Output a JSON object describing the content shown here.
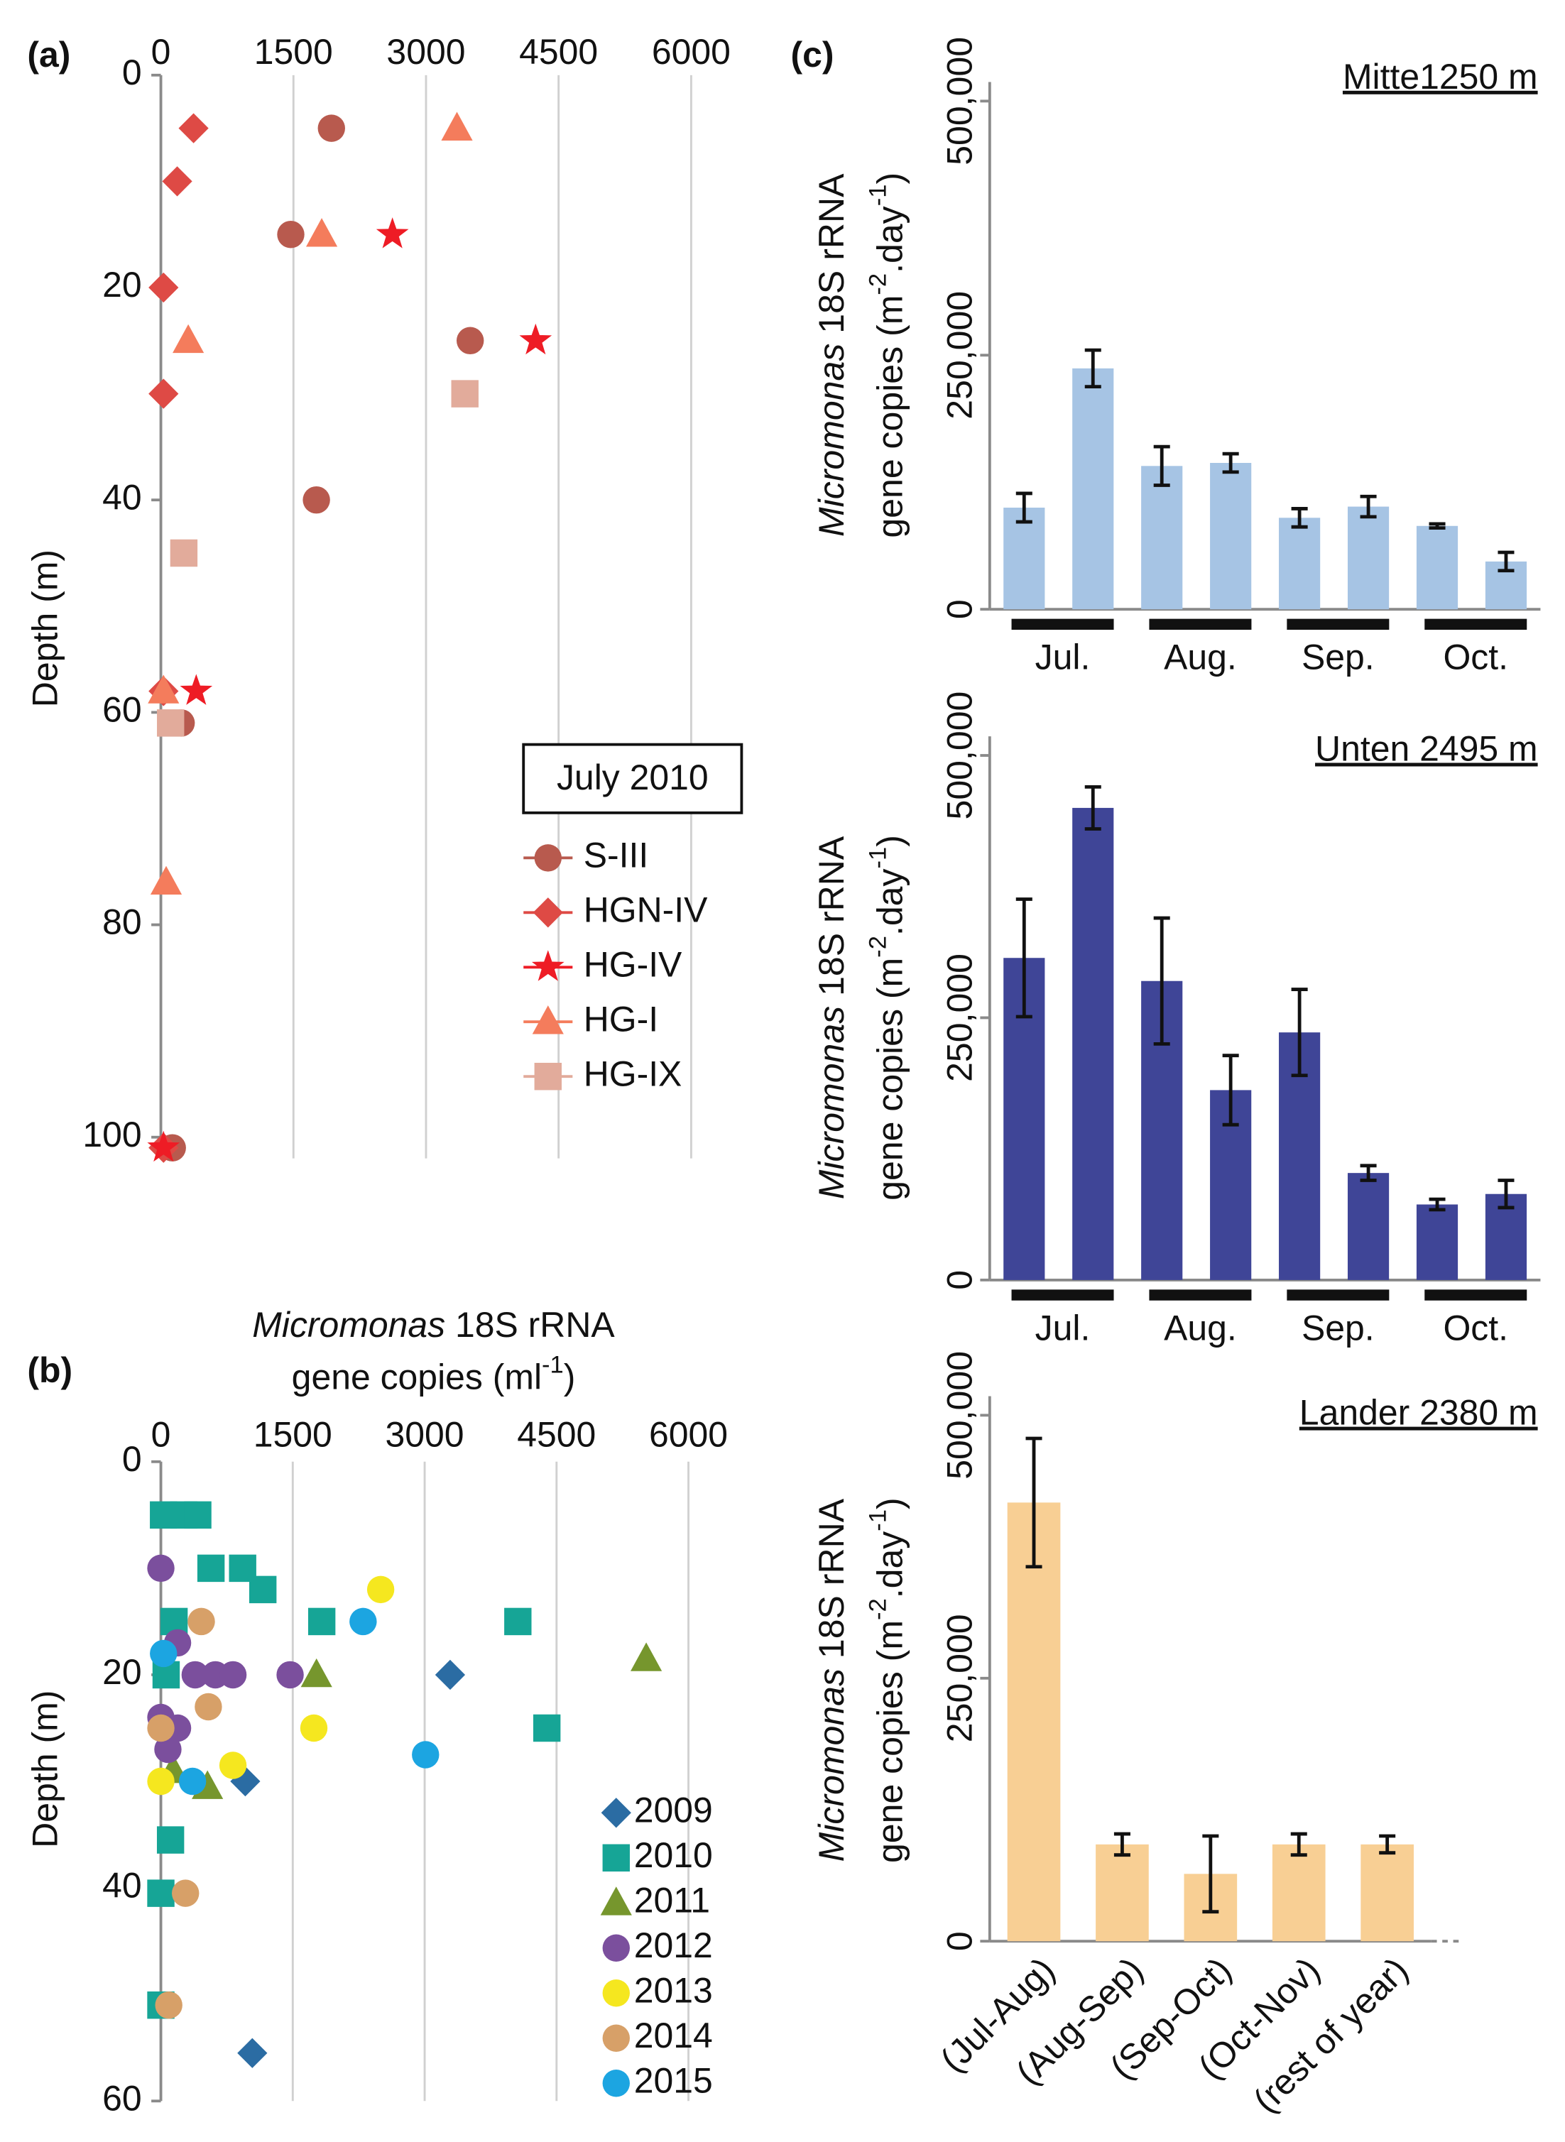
{
  "chart_data": [
    {
      "type": "scatter",
      "panel_label": "(a)",
      "ylabel": "Depth (m)",
      "xlim": [
        0,
        6000
      ],
      "xticks": [
        0,
        1500,
        3000,
        4500,
        6000
      ],
      "ylim": [
        0,
        102
      ],
      "yticks": [
        0,
        20,
        40,
        60,
        80,
        100
      ],
      "grid": true,
      "y_inverted": true,
      "legend_title": "July 2010",
      "series": [
        {
          "name": "S-III",
          "color": "#b85a4e",
          "marker": "circle",
          "x": [
            1930,
            1470,
            3500,
            1760,
            230,
            130
          ],
          "values": [
            5,
            15,
            25,
            40,
            61,
            101
          ]
        },
        {
          "name": "HGN-IV",
          "color": "#de4a45",
          "marker": "diamond",
          "x": [
            370,
            185,
            30,
            30,
            30,
            30
          ],
          "values": [
            5,
            10,
            20,
            30,
            58,
            101
          ]
        },
        {
          "name": "HG-IV",
          "color": "#ee1c25",
          "marker": "star",
          "x": [
            2620,
            4240,
            400,
            30
          ],
          "values": [
            15,
            25,
            58,
            101
          ]
        },
        {
          "name": "HG-I",
          "color": "#f47c5c",
          "marker": "triangle",
          "x": [
            3350,
            1820,
            310,
            30,
            60
          ],
          "values": [
            5,
            15,
            25,
            58,
            76
          ]
        },
        {
          "name": "HG-IX",
          "color": "#e2ab9b",
          "marker": "square",
          "x": [
            3440,
            260,
            110
          ],
          "values": [
            30,
            45,
            61
          ]
        }
      ]
    },
    {
      "type": "scatter",
      "panel_label": "(b)",
      "ylabel": "Depth (m)",
      "xlabel": [
        [
          {
            "text": "Micromonas",
            "style": "italic"
          },
          {
            "text": " 18S rRNA"
          }
        ],
        [
          {
            "text": "gene copies (ml"
          },
          {
            "text": "-1",
            "style": "sup"
          },
          {
            "text": ")"
          }
        ]
      ],
      "xlim": [
        0,
        6000
      ],
      "xticks": [
        0,
        1500,
        3000,
        4500,
        6000
      ],
      "ylim": [
        0,
        60
      ],
      "yticks": [
        0,
        20,
        40,
        60
      ],
      "grid": true,
      "y_inverted": true,
      "series": [
        {
          "name": "2009",
          "color": "#2b6ca3",
          "marker": "diamond",
          "x": [
            3290,
            960,
            1040
          ],
          "values": [
            20,
            30,
            55.5
          ]
        },
        {
          "name": "2010",
          "color": "#16a596",
          "marker": "square",
          "x": [
            30,
            260,
            420,
            570,
            930,
            1160,
            1830,
            4060,
            4390,
            150,
            60,
            110,
            0,
            0
          ],
          "values": [
            5,
            5,
            5,
            10,
            10,
            12,
            15,
            15,
            25,
            15,
            20,
            35.5,
            40.5,
            51
          ]
        },
        {
          "name": "2011",
          "color": "#76962d",
          "marker": "triangle",
          "x": [
            5520,
            1770,
            530,
            140
          ],
          "values": [
            18.5,
            20,
            30.5,
            29
          ]
        },
        {
          "name": "2012",
          "color": "#7b4f9d",
          "marker": "circle",
          "x": [
            0,
            190,
            390,
            620,
            820,
            1470,
            0,
            190,
            80
          ],
          "values": [
            10,
            17,
            20,
            20,
            20,
            20,
            24,
            25,
            27
          ]
        },
        {
          "name": "2013",
          "color": "#f5e71f",
          "marker": "circle",
          "x": [
            2500,
            1740,
            820,
            0
          ],
          "values": [
            12,
            25,
            28.5,
            30
          ]
        },
        {
          "name": "2014",
          "color": "#d7a068",
          "marker": "circle",
          "x": [
            460,
            540,
            0,
            280,
            90
          ],
          "values": [
            15,
            23,
            25,
            40.5,
            51
          ]
        },
        {
          "name": "2015",
          "color": "#1ca5e1",
          "marker": "circle",
          "x": [
            2300,
            3010,
            30,
            360
          ],
          "values": [
            15,
            27.5,
            18,
            30
          ]
        }
      ]
    },
    {
      "type": "bar",
      "panel_label": "(c)",
      "title": "Mitte1250 m",
      "color": "#a6c4e4",
      "ylabel": [
        [
          {
            "text": "Micromonas",
            "style": "italic"
          },
          {
            "text": " 18S rRNA"
          }
        ],
        [
          {
            "text": "gene copies (m"
          },
          {
            "text": "-2",
            "style": "sup"
          },
          {
            "text": ".day"
          },
          {
            "text": "-1",
            "style": "sup"
          },
          {
            "text": ")"
          }
        ]
      ],
      "groups": [
        "Jul.",
        "Aug.",
        "Sep.",
        "Oct."
      ],
      "values": [
        100000,
        237000,
        141000,
        144000,
        90000,
        101000,
        82000,
        47000
      ],
      "errors": [
        14000,
        18000,
        19000,
        9000,
        9000,
        10000,
        2000,
        9000
      ],
      "ylim": [
        0,
        500000
      ],
      "yticks": [
        0,
        {
          "value": 250000,
          "label": "250,000"
        },
        {
          "value": 500000,
          "label": "500,000"
        }
      ]
    },
    {
      "type": "bar",
      "title": "Unten 2495 m",
      "color": "#3f4597",
      "ylabel": [
        [
          {
            "text": "Micromonas",
            "style": "italic"
          },
          {
            "text": " 18S rRNA"
          }
        ],
        [
          {
            "text": "gene copies (m"
          },
          {
            "text": "-2",
            "style": "sup"
          },
          {
            "text": ".day"
          },
          {
            "text": "-1",
            "style": "sup"
          },
          {
            "text": ")"
          }
        ]
      ],
      "groups": [
        "Jul.",
        "Aug.",
        "Sep.",
        "Oct."
      ],
      "values": [
        307000,
        450000,
        285000,
        181000,
        236000,
        102000,
        72000,
        82000
      ],
      "errors": [
        56000,
        20000,
        60000,
        33000,
        41000,
        7000,
        5000,
        13000
      ],
      "ylim": [
        0,
        500000
      ],
      "yticks": [
        0,
        {
          "value": 250000,
          "label": "250,000"
        },
        {
          "value": 500000,
          "label": "500,000"
        }
      ]
    },
    {
      "type": "bar",
      "title": "Lander 2380 m",
      "color": "#f8cf94",
      "ylabel": [
        [
          {
            "text": "Micromonas",
            "style": "italic"
          },
          {
            "text": " 18S rRNA"
          }
        ],
        [
          {
            "text": "gene copies (m"
          },
          {
            "text": "-2",
            "style": "sup"
          },
          {
            "text": ".day"
          },
          {
            "text": "-1",
            "style": "sup"
          },
          {
            "text": ")"
          }
        ]
      ],
      "categories": [
        "(Jul-Aug)",
        "(Aug-Sep)",
        "(Sep-Oct)",
        "(Oct-Nov)",
        "(rest of year)"
      ],
      "values": [
        417000,
        92000,
        64000,
        92000,
        92000
      ],
      "errors": [
        61000,
        10000,
        36000,
        10000,
        8000
      ],
      "ylim": [
        0,
        500000
      ],
      "yticks": [
        0,
        {
          "value": 250000,
          "label": "250,000"
        },
        {
          "value": 500000,
          "label": "500,000"
        }
      ]
    }
  ]
}
